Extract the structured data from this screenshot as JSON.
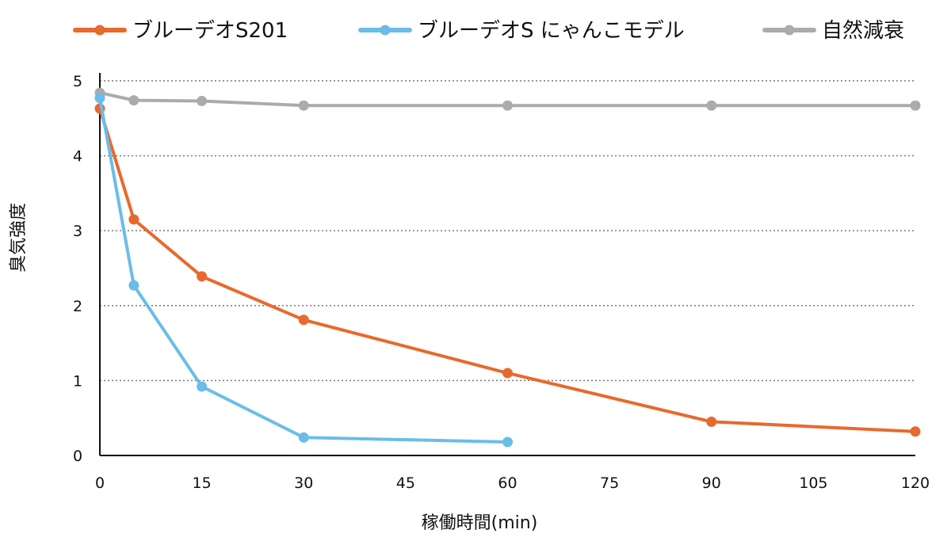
{
  "chart_data": {
    "type": "line",
    "title": "",
    "xlabel": "稼働時間(min)",
    "ylabel": "臭気強度",
    "xlim": [
      0,
      120
    ],
    "ylim": [
      0,
      5
    ],
    "xticks": [
      0,
      15,
      30,
      45,
      60,
      75,
      90,
      105,
      120
    ],
    "yticks": [
      0,
      1,
      2,
      3,
      4,
      5
    ],
    "grid": "horizontal dotted",
    "legend": "top",
    "series": [
      {
        "name": "ブルーデオS201",
        "color": "#e8692d",
        "x": [
          0,
          5,
          15,
          30,
          60,
          90,
          120
        ],
        "y": [
          4.63,
          3.15,
          2.39,
          1.81,
          1.1,
          0.45,
          0.32
        ]
      },
      {
        "name": "ブルーデオS にゃんこモデル",
        "color": "#6bbde8",
        "x": [
          0,
          5,
          15,
          30,
          60
        ],
        "y": [
          4.77,
          2.27,
          0.92,
          0.24,
          0.18
        ]
      },
      {
        "name": "自然減衰",
        "color": "#a9abad",
        "x": [
          0,
          5,
          15,
          30,
          60,
          90,
          120
        ],
        "y": [
          4.84,
          4.74,
          4.73,
          4.67,
          4.67,
          4.67,
          4.67
        ]
      }
    ]
  }
}
